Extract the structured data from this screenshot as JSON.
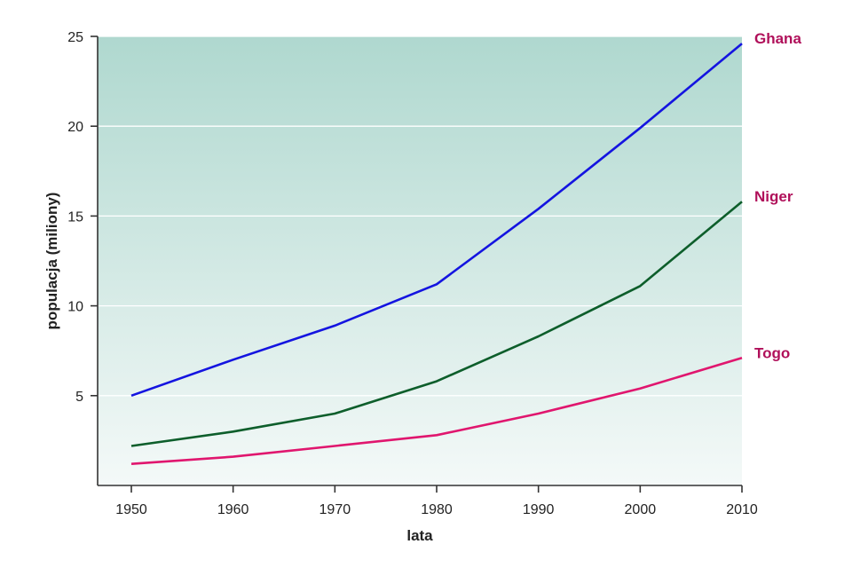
{
  "chart_data": {
    "type": "line",
    "xlabel": "lata",
    "ylabel": "populacja (miliony)",
    "x": [
      1950,
      1960,
      1970,
      1980,
      1990,
      2000,
      2010
    ],
    "x_ticks": [
      "1950",
      "1960",
      "1970",
      "1980",
      "1990",
      "2000",
      "2010"
    ],
    "y_ticks": [
      "5",
      "10",
      "15",
      "20",
      "25"
    ],
    "xlim": [
      1950,
      2010
    ],
    "ylim": [
      0,
      25
    ],
    "grid": "horizontal",
    "series": [
      {
        "name": "Ghana",
        "color": "#1414e0",
        "label_color": "#b0105a",
        "values": [
          5.0,
          7.0,
          8.9,
          11.2,
          15.4,
          19.9,
          24.6
        ]
      },
      {
        "name": "Niger",
        "color": "#0d5e2b",
        "label_color": "#b0105a",
        "values": [
          2.2,
          3.0,
          4.0,
          5.8,
          8.3,
          11.1,
          15.8
        ]
      },
      {
        "name": "Togo",
        "color": "#e0166e",
        "label_color": "#b0105a",
        "values": [
          1.2,
          1.6,
          2.2,
          2.8,
          4.0,
          5.4,
          7.1
        ]
      }
    ]
  }
}
